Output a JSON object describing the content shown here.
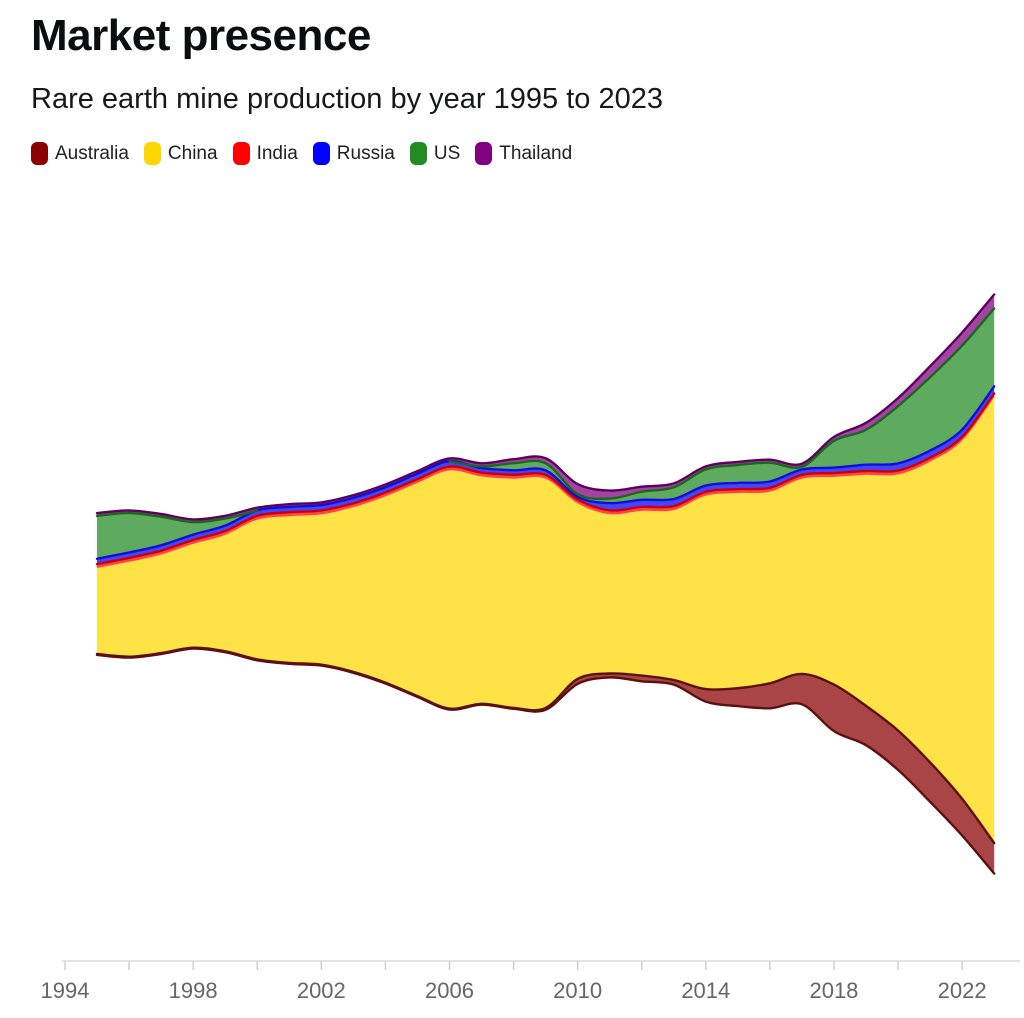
{
  "header": {
    "title": "Market presence",
    "subtitle": "Rare earth mine production by year 1995 to 2023"
  },
  "legend": [
    {
      "label": "Australia",
      "color": "#8B0000"
    },
    {
      "label": "China",
      "color": "#FFD700"
    },
    {
      "label": "India",
      "color": "#FF0000"
    },
    {
      "label": "Russia",
      "color": "#0000FF"
    },
    {
      "label": "US",
      "color": "#228B22"
    },
    {
      "label": "Thailand",
      "color": "#800080"
    }
  ],
  "chart_data": {
    "type": "area",
    "variant": "streamgraph-silhouette",
    "title": "Market presence",
    "subtitle": "Rare earth mine production by year 1995 to 2023",
    "xlabel": "",
    "ylabel": "",
    "y_axis": "none (stream thickness encodes production; values estimated in kilotonnes)",
    "grid": false,
    "legend_position": "top",
    "x": [
      1995,
      1996,
      1997,
      1998,
      1999,
      2000,
      2001,
      2002,
      2003,
      2004,
      2005,
      2006,
      2007,
      2008,
      2009,
      2010,
      2011,
      2012,
      2013,
      2014,
      2015,
      2016,
      2017,
      2018,
      2019,
      2020,
      2021,
      2022,
      2023
    ],
    "series": [
      {
        "name": "Australia",
        "color": "#8B0000",
        "stroke": "#5c1010",
        "values": [
          0.5,
          0.5,
          0.5,
          0.5,
          0.5,
          0.5,
          0.5,
          0.5,
          0.5,
          0.5,
          0.5,
          0.5,
          0.5,
          0.5,
          1.0,
          2.8,
          2.2,
          3.2,
          2.5,
          7,
          10,
          14,
          17,
          26,
          22,
          22,
          22,
          20.5,
          17
        ]
      },
      {
        "name": "China",
        "color": "#FFD700",
        "stroke": null,
        "values": [
          48,
          53,
          55,
          58,
          65,
          78,
          82,
          84,
          92,
          104,
          119,
          133,
          127,
          128,
          128,
          98,
          89,
          92,
          95,
          108,
          109,
          107,
          109,
          116,
          129,
          143,
          168,
          200,
          249
        ]
      },
      {
        "name": "India",
        "color": "#FF0000",
        "stroke": "#cc0000",
        "values": [
          2.2,
          2.2,
          2.2,
          2.2,
          2.2,
          2.2,
          2.2,
          2.2,
          2.2,
          2.2,
          2.2,
          2.2,
          2.2,
          2.2,
          2.2,
          2.2,
          2.2,
          2.2,
          2.2,
          2.2,
          2.2,
          2.2,
          2.2,
          2.2,
          2.2,
          2.2,
          2.2,
          2.2,
          2.2
        ]
      },
      {
        "name": "Russia",
        "color": "#0000FF",
        "stroke": "#0f0fd8",
        "values": [
          3,
          3,
          3,
          3,
          3,
          3,
          3,
          3,
          3,
          3,
          3,
          3,
          2.5,
          2.5,
          2.5,
          1.5,
          4,
          4,
          4,
          3.5,
          3.5,
          3.5,
          3,
          3,
          3.5,
          4,
          4,
          4,
          4
        ]
      },
      {
        "name": "US",
        "color": "#228B22",
        "stroke": "#1b671b",
        "values": [
          24,
          22,
          16,
          7,
          4,
          0,
          0,
          0,
          0,
          0,
          0,
          0,
          1,
          4,
          4,
          1.5,
          2.5,
          4.5,
          6.5,
          9,
          10,
          10.5,
          1.5,
          15,
          19.5,
          32,
          41,
          47,
          43.5
        ]
      },
      {
        "name": "Thailand",
        "color": "#800080",
        "stroke": "#5e005e",
        "values": [
          1.5,
          1.5,
          1.5,
          1.5,
          1.5,
          1.5,
          1.5,
          1.5,
          1.5,
          1.5,
          1.5,
          1.5,
          1.7,
          2.2,
          2.8,
          5.6,
          4.5,
          2.8,
          2.2,
          1.7,
          1.7,
          1.7,
          1.7,
          2.2,
          3.9,
          4.5,
          6.1,
          7.3,
          7.8
        ]
      }
    ],
    "x_axis": {
      "labeled_ticks": [
        1994,
        1998,
        2002,
        2006,
        2010,
        2014,
        2018,
        2022
      ],
      "minor_ticks": [
        1994,
        1996,
        1998,
        2000,
        2002,
        2004,
        2006,
        2008,
        2010,
        2012,
        2014,
        2016,
        2018,
        2020,
        2022
      ],
      "range_shown": [
        1994,
        2023
      ]
    },
    "colors": {
      "axis_line": "#dcdcdc",
      "tick": "#cccccc",
      "tick_label": "#666666"
    }
  }
}
